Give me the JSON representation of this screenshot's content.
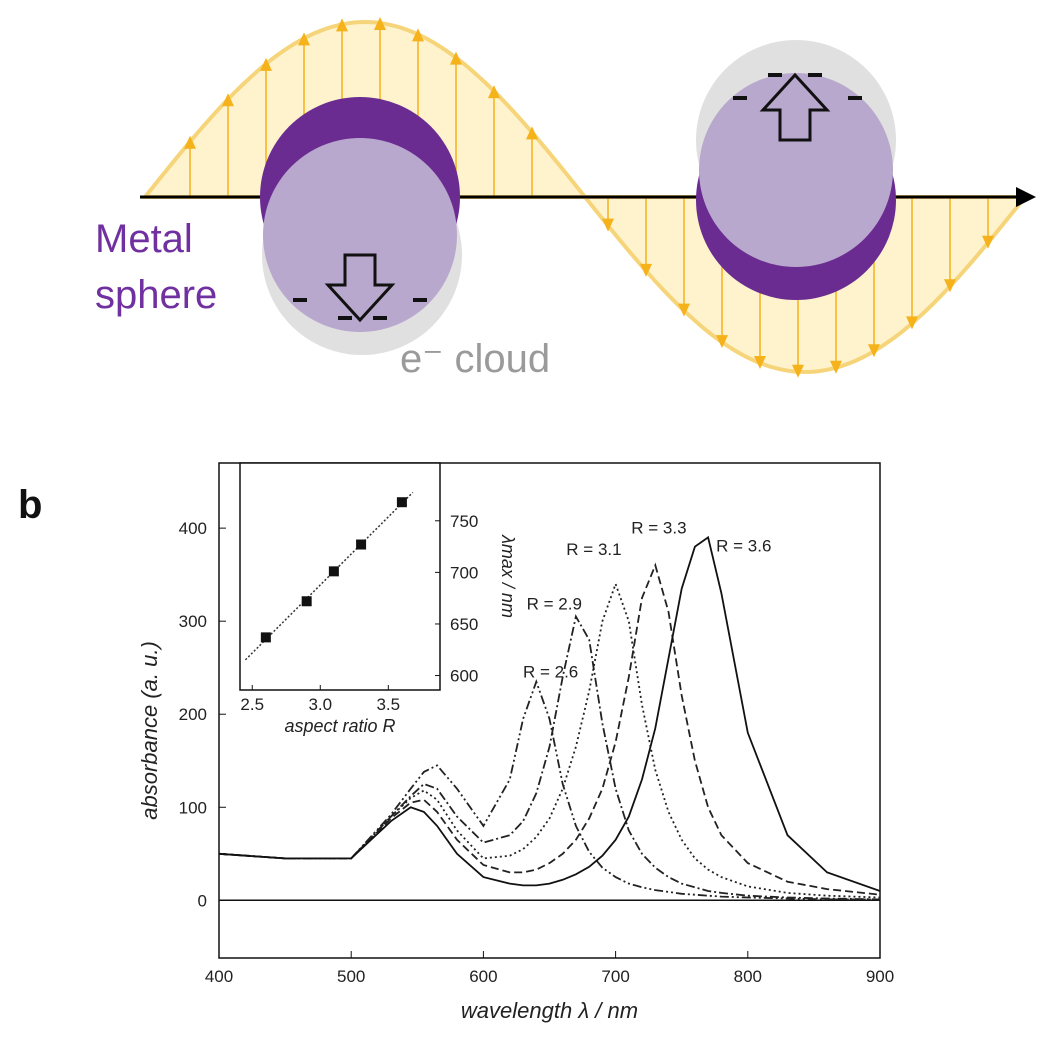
{
  "diagram": {
    "metal_label": [
      "Metal",
      "sphere"
    ],
    "cloud_label": "e⁻ cloud"
  },
  "panel_label": "b",
  "chart_data": [
    {
      "type": "line",
      "x": [
        400,
        450,
        500,
        530,
        545,
        555,
        565,
        580,
        600,
        620,
        630,
        640,
        650,
        660,
        670,
        680,
        690,
        700,
        710,
        720,
        730,
        740,
        750,
        760,
        770,
        780,
        800,
        830,
        860,
        900
      ],
      "series": [
        {
          "name": "R = 2.6",
          "color": "#222222",
          "line_style": "dash-dot-dot",
          "values": [
            50,
            45,
            45,
            92,
            120,
            138,
            145,
            120,
            80,
            130,
            195,
            235,
            195,
            125,
            80,
            52,
            35,
            25,
            18,
            14,
            11,
            9,
            7,
            6,
            5,
            4,
            3,
            2,
            1,
            1
          ]
        },
        {
          "name": "R = 2.9",
          "color": "#222222",
          "line_style": "dash-dot",
          "values": [
            50,
            45,
            45,
            90,
            112,
            125,
            120,
            90,
            62,
            70,
            85,
            115,
            165,
            240,
            305,
            280,
            190,
            120,
            75,
            50,
            35,
            25,
            18,
            14,
            10,
            8,
            5,
            3,
            2,
            1
          ]
        },
        {
          "name": "R = 3.1",
          "color": "#222222",
          "line_style": "dotted",
          "values": [
            50,
            45,
            45,
            90,
            110,
            118,
            108,
            75,
            45,
            48,
            55,
            68,
            88,
            120,
            165,
            225,
            300,
            340,
            300,
            210,
            140,
            95,
            65,
            45,
            33,
            25,
            15,
            8,
            5,
            3
          ]
        },
        {
          "name": "R = 3.3",
          "color": "#222222",
          "line_style": "dashed",
          "values": [
            50,
            45,
            45,
            88,
            105,
            108,
            95,
            65,
            38,
            30,
            30,
            33,
            40,
            50,
            65,
            88,
            120,
            170,
            240,
            325,
            360,
            310,
            220,
            150,
            100,
            70,
            40,
            20,
            12,
            6
          ]
        },
        {
          "name": "R = 3.6",
          "color": "#111111",
          "line_style": "solid",
          "values": [
            50,
            45,
            45,
            85,
            100,
            95,
            80,
            50,
            25,
            18,
            16,
            16,
            18,
            22,
            28,
            36,
            48,
            65,
            90,
            130,
            185,
            260,
            335,
            380,
            390,
            330,
            180,
            70,
            30,
            10
          ]
        }
      ],
      "xlim": [
        400,
        900
      ],
      "xticks": [
        400,
        500,
        600,
        700,
        800,
        900
      ],
      "ylim": [
        -62,
        470
      ],
      "yticks": [
        0,
        100,
        200,
        300,
        400
      ],
      "xlabel": "wavelength λ / nm",
      "ylabel": "absorbance   (a. u.)",
      "zero_line": true
    },
    {
      "type": "scatter",
      "x": [
        2.6,
        2.9,
        3.1,
        3.3,
        3.6
      ],
      "values": [
        637,
        672,
        701,
        727,
        768
      ],
      "color": "#111111",
      "xlim": [
        2.41,
        3.88
      ],
      "xticks": [
        2.5,
        {
          "value": 3,
          "label": "3.0"
        },
        3.5
      ],
      "ylim": [
        586,
        806
      ],
      "yticks": [
        600,
        650,
        700,
        750
      ],
      "y_axis_side": "right",
      "fit_line": true,
      "marker": "square",
      "xlabel": "aspect ratio R",
      "ylabel": "λmax / nm"
    }
  ]
}
